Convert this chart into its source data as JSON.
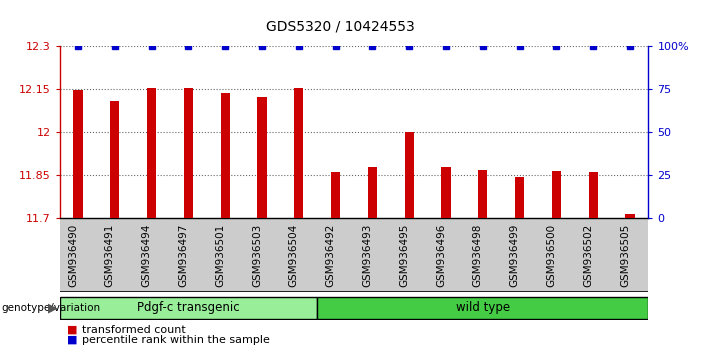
{
  "title": "GDS5320 / 10424553",
  "categories": [
    "GSM936490",
    "GSM936491",
    "GSM936494",
    "GSM936497",
    "GSM936501",
    "GSM936503",
    "GSM936504",
    "GSM936492",
    "GSM936493",
    "GSM936495",
    "GSM936496",
    "GSM936498",
    "GSM936499",
    "GSM936500",
    "GSM936502",
    "GSM936505"
  ],
  "bar_values": [
    12.145,
    12.107,
    12.155,
    12.155,
    12.137,
    12.122,
    12.155,
    11.858,
    11.877,
    11.998,
    11.877,
    11.868,
    11.843,
    11.862,
    11.858,
    11.714
  ],
  "percentile_values": [
    100,
    100,
    100,
    100,
    100,
    100,
    100,
    100,
    100,
    100,
    100,
    100,
    100,
    100,
    100,
    100
  ],
  "bar_color": "#cc0000",
  "percentile_color": "#0000cc",
  "bar_bottom": 11.7,
  "ylim_left": [
    11.7,
    12.3
  ],
  "ylim_right": [
    0,
    100
  ],
  "yticks_left": [
    11.7,
    11.85,
    12.0,
    12.15,
    12.3
  ],
  "yticks_right": [
    0,
    25,
    50,
    75,
    100
  ],
  "ytick_labels_left": [
    "11.7",
    "11.85",
    "12",
    "12.15",
    "12.3"
  ],
  "ytick_labels_right": [
    "0",
    "25",
    "50",
    "75",
    "100%"
  ],
  "group1_label": "Pdgf-c transgenic",
  "group2_label": "wild type",
  "group1_count": 7,
  "group2_count": 9,
  "group1_color": "#99ee99",
  "group2_color": "#44cc44",
  "legend_label1": "transformed count",
  "legend_label2": "percentile rank within the sample",
  "genotype_label": "genotype/variation",
  "background_color": "#ffffff",
  "tick_label_area_color": "#cccccc",
  "bar_width": 0.25,
  "percentile_marker_size": 5,
  "title_fontsize": 10,
  "tick_fontsize": 8,
  "label_fontsize": 7.5,
  "legend_fontsize": 8
}
